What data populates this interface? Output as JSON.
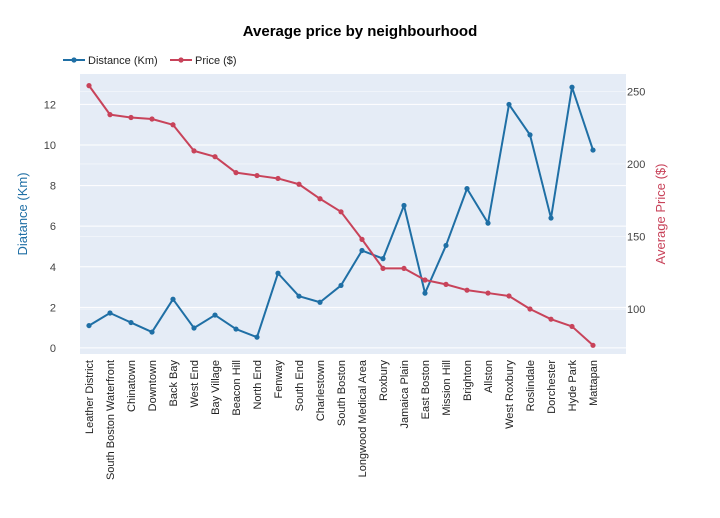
{
  "chart_data": {
    "type": "line",
    "title": "Average price by neighbourhood",
    "ylabel_left": "Diatance (Km)",
    "ylabel_right": "Average Price ($)",
    "xlabel": "",
    "categories": [
      "Leather District",
      "South Boston Waterfront",
      "Chinatown",
      "Downtown",
      "Back Bay",
      "West End",
      "Bay Village",
      "Beacon Hill",
      "North End",
      "Fenway",
      "South End",
      "Charlestown",
      "South Boston",
      "Longwood Medical Area",
      "Roxbury",
      "Jamaica Plain",
      "East Boston",
      "Mission Hill",
      "Brighton",
      "Allston",
      "West Roxbury",
      "Roslindale",
      "Dorchester",
      "Hyde Park",
      "Mattapan"
    ],
    "series": [
      {
        "name": "Distance (Km)",
        "axis": "left",
        "color": "#1f6fa5",
        "values": [
          1.1,
          1.72,
          1.25,
          0.78,
          2.4,
          0.98,
          1.62,
          0.93,
          0.53,
          3.68,
          2.55,
          2.25,
          3.08,
          4.8,
          4.4,
          7.02,
          2.7,
          5.05,
          7.85,
          6.15,
          12.0,
          10.5,
          6.4,
          12.85,
          9.75
        ]
      },
      {
        "name": "Price ($)",
        "axis": "right",
        "color": "#c8435a",
        "values": [
          254,
          234,
          232,
          231,
          227,
          209,
          205,
          194,
          192,
          190,
          186,
          176,
          167,
          148,
          128,
          128,
          120,
          117,
          113,
          111,
          109,
          100,
          93,
          88,
          75
        ]
      }
    ],
    "y_left": {
      "min": -0.3,
      "max": 13.5,
      "ticks": [
        0,
        2,
        4,
        6,
        8,
        10,
        12
      ]
    },
    "y_right": {
      "min": 69,
      "max": 262,
      "ticks": [
        100,
        150,
        200,
        250
      ]
    },
    "grid": true,
    "legend_position": "top-left",
    "colors": {
      "plot_bg": "#e5ecf6",
      "grid": "#ffffff",
      "left_axis": "#1f6fa5",
      "right_axis": "#c8435a"
    }
  }
}
